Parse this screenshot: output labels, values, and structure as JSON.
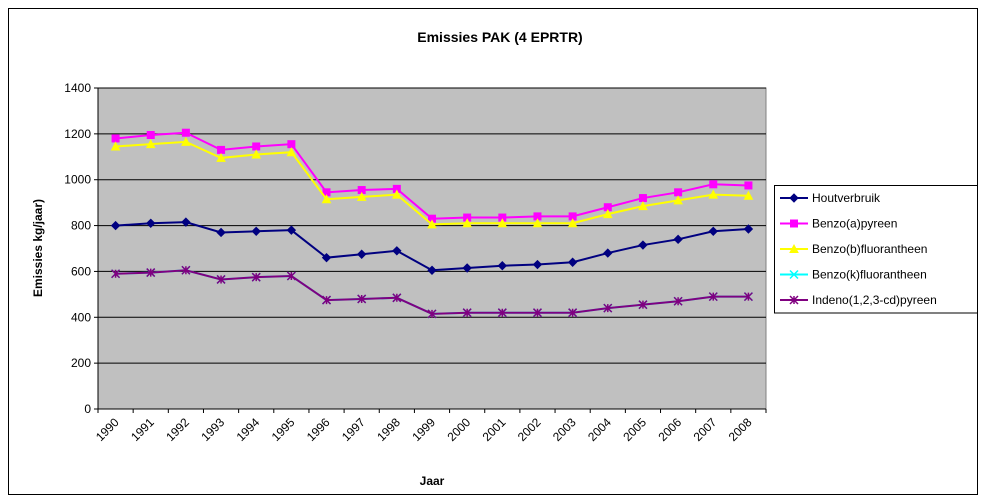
{
  "chart_data": {
    "type": "line",
    "title": "Emissies PAK (4 EPRTR)",
    "x_label": "Jaar",
    "y_label": "Emissies kg/jaar)",
    "categories": [
      "1990",
      "1991",
      "1992",
      "1993",
      "1994",
      "1995",
      "1996",
      "1997",
      "1998",
      "1999",
      "2000",
      "2001",
      "2002",
      "2003",
      "2004",
      "2005",
      "2006",
      "2007",
      "2008"
    ],
    "series": [
      {
        "name": "Houtverbruik",
        "color": "#000080",
        "marker": "diamond",
        "values": [
          800,
          810,
          815,
          770,
          775,
          780,
          660,
          675,
          690,
          605,
          615,
          625,
          630,
          640,
          680,
          715,
          740,
          775,
          785
        ]
      },
      {
        "name": "Benzo(a)pyreen",
        "color": "#ff00ff",
        "marker": "square",
        "values": [
          1180,
          1195,
          1205,
          1130,
          1145,
          1155,
          945,
          955,
          960,
          830,
          835,
          835,
          840,
          840,
          880,
          920,
          945,
          980,
          975
        ]
      },
      {
        "name": "Benzo(b)fluorantheen",
        "color": "#ffff00",
        "marker": "triangle",
        "values": [
          1145,
          1155,
          1165,
          1095,
          1110,
          1120,
          915,
          925,
          935,
          805,
          810,
          810,
          810,
          810,
          850,
          885,
          910,
          935,
          930
        ]
      },
      {
        "name": "Benzo(k)fluorantheen",
        "color": "#00ffff",
        "marker": "x",
        "values": [
          590,
          595,
          605,
          565,
          575,
          580,
          475,
          480,
          485,
          415,
          420,
          420,
          420,
          420,
          440,
          455,
          470,
          490,
          490
        ]
      },
      {
        "name": "Indeno(1,2,3-cd)pyreen",
        "color": "#800080",
        "marker": "star",
        "values": [
          590,
          595,
          605,
          565,
          575,
          580,
          475,
          480,
          485,
          415,
          420,
          420,
          420,
          420,
          440,
          455,
          470,
          490,
          490
        ]
      }
    ],
    "ylim": [
      0,
      1400
    ],
    "yticks": [
      0,
      200,
      400,
      600,
      800,
      1000,
      1200,
      1400
    ],
    "grid": true,
    "legend": "right"
  }
}
